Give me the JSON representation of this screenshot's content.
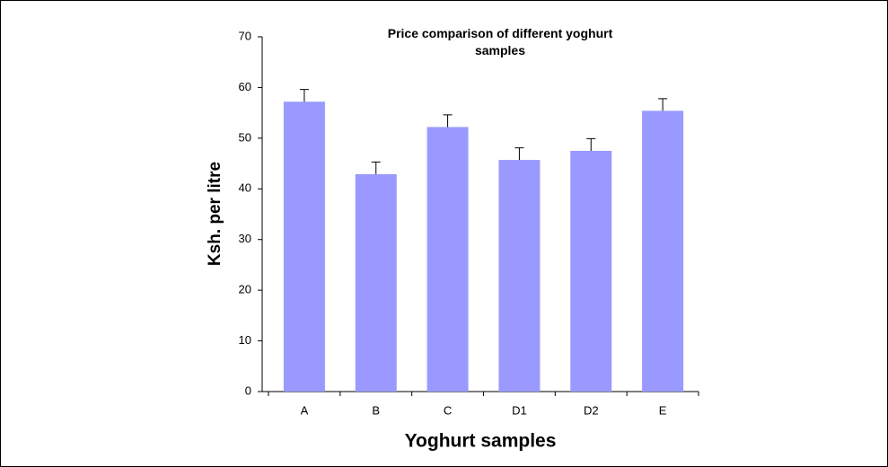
{
  "chart_data": {
    "type": "bar",
    "title": "Price comparison of different yoghurt samples",
    "xlabel": "Yoghurt samples",
    "ylabel": "Ksh. per litre",
    "categories": [
      "A",
      "B",
      "C",
      "D1",
      "D2",
      "E"
    ],
    "values": [
      57.2,
      42.9,
      52.2,
      45.7,
      47.5,
      55.4
    ],
    "errors": [
      2.4,
      2.4,
      2.4,
      2.4,
      2.4,
      2.4
    ],
    "color": "#9999ff",
    "ylim": [
      0,
      70
    ],
    "yticks": [
      0,
      10,
      20,
      30,
      40,
      50,
      60,
      70
    ],
    "grid": false
  }
}
